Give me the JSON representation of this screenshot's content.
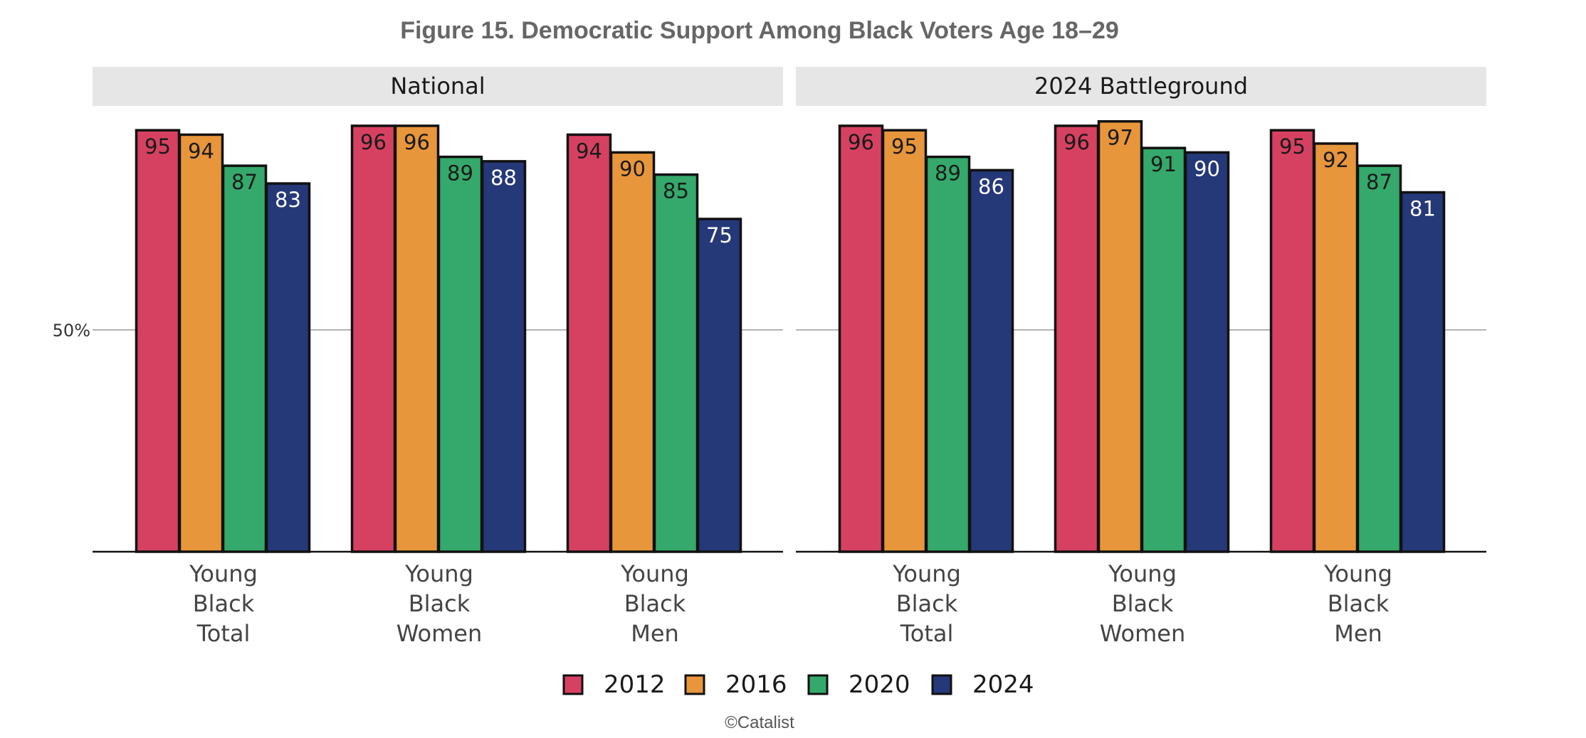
{
  "chart_data": {
    "type": "bar",
    "title": "Figure 15. Democratic Support Among Black Voters Age 18–29",
    "credit": "©Catalist",
    "series_names": [
      "2012",
      "2016",
      "2020",
      "2024"
    ],
    "colors": [
      "#d64161",
      "#e8963c",
      "#34a96b",
      "#253878"
    ],
    "y_tick_label": "50%",
    "y_tick_value": 50,
    "ylim": [
      0,
      100
    ],
    "grid": "single reference line at 50%",
    "legend": "bottom-center",
    "panels": [
      {
        "name": "National",
        "categories": [
          {
            "label": [
              "Young",
              "Black",
              "Total"
            ],
            "values": [
              95,
              94,
              87,
              83
            ]
          },
          {
            "label": [
              "Young",
              "Black",
              "Women"
            ],
            "values": [
              96,
              96,
              89,
              88
            ]
          },
          {
            "label": [
              "Young",
              "Black",
              "Men"
            ],
            "values": [
              94,
              90,
              85,
              75
            ]
          }
        ]
      },
      {
        "name": "2024 Battleground",
        "categories": [
          {
            "label": [
              "Young",
              "Black",
              "Total"
            ],
            "values": [
              96,
              95,
              89,
              86
            ]
          },
          {
            "label": [
              "Young",
              "Black",
              "Women"
            ],
            "values": [
              96,
              97,
              91,
              90
            ]
          },
          {
            "label": [
              "Young",
              "Black",
              "Men"
            ],
            "values": [
              95,
              92,
              87,
              81
            ]
          }
        ]
      }
    ]
  }
}
